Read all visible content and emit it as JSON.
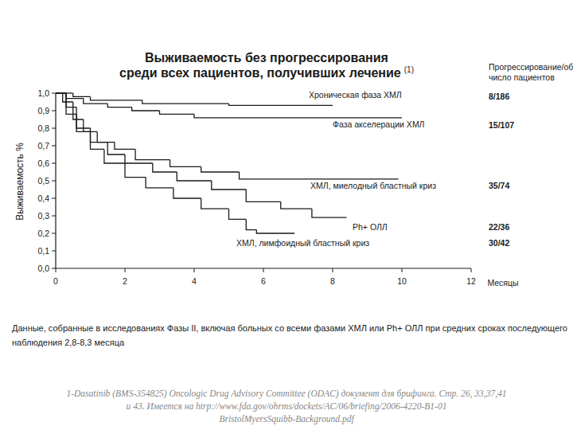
{
  "chart_data": {
    "type": "line",
    "title": [
      "Выживаемость без прогрессирования",
      "среди всех пациентов, получивших лечение"
    ],
    "title_note": "(1)",
    "x_label": "Месяцы",
    "y_label": "Выживаемость %",
    "column_header": [
      "Прогрессирование/общее",
      "число пациентов"
    ],
    "line_style": "step",
    "color": "#1a1a1a",
    "grid": false,
    "xlim": [
      0,
      12
    ],
    "ylim": [
      0,
      1
    ],
    "xticks": [
      0,
      2,
      4,
      6,
      8,
      10,
      12
    ],
    "yticks": [
      {
        "value": 1.0,
        "label": "1,0"
      },
      {
        "value": 0.9,
        "label": "0,9"
      },
      {
        "value": 0.8,
        "label": "0,8"
      },
      {
        "value": 0.7,
        "label": "0,7"
      },
      {
        "value": 0.6,
        "label": "0,6"
      },
      {
        "value": 0.5,
        "label": "0,5"
      },
      {
        "value": 0.4,
        "label": "0,4"
      },
      {
        "value": 0.3,
        "label": "0,3"
      },
      {
        "value": 0.2,
        "label": "0,2"
      },
      {
        "value": 0.1,
        "label": "0,1"
      },
      {
        "value": 0.0,
        "label": "0,0"
      }
    ],
    "series": [
      {
        "name": "Хроническая фаза ХМЛ",
        "progression": "8/186",
        "x": [
          0,
          0.5,
          1.0,
          2.5,
          5.0,
          8.0
        ],
        "values": [
          1.0,
          0.98,
          0.96,
          0.94,
          0.93,
          0.93
        ]
      },
      {
        "name": "Фаза акселерации ХМЛ",
        "progression": "15/107",
        "x": [
          0,
          0.3,
          0.8,
          1.5,
          2.2,
          3.0,
          4.0,
          10.0
        ],
        "values": [
          1.0,
          0.97,
          0.94,
          0.92,
          0.9,
          0.88,
          0.86,
          0.86
        ]
      },
      {
        "name": "ХМЛ, миелодный бластный криз",
        "progression": "35/74",
        "x": [
          0,
          0.2,
          0.5,
          0.8,
          1.2,
          1.7,
          2.3,
          3.3,
          4.2,
          5.3,
          9.9
        ],
        "values": [
          1.0,
          0.95,
          0.85,
          0.78,
          0.72,
          0.68,
          0.62,
          0.58,
          0.55,
          0.51,
          0.51
        ]
      },
      {
        "name": "Ph+ ОЛЛ",
        "progression": "22/36",
        "x": [
          0,
          0.3,
          0.6,
          1.0,
          1.5,
          2.0,
          2.8,
          3.5,
          4.5,
          5.5,
          6.5,
          7.4,
          8.4
        ],
        "values": [
          1.0,
          0.92,
          0.8,
          0.72,
          0.65,
          0.6,
          0.55,
          0.5,
          0.45,
          0.38,
          0.34,
          0.29,
          0.29
        ]
      },
      {
        "name": "ХМЛ, лимфоидный бластный криз",
        "progression": "30/42",
        "x": [
          0,
          0.3,
          0.6,
          1.0,
          1.4,
          2.0,
          2.6,
          3.4,
          4.2,
          5.0,
          5.5,
          5.8,
          6.9
        ],
        "values": [
          1.0,
          0.88,
          0.78,
          0.68,
          0.6,
          0.52,
          0.46,
          0.4,
          0.34,
          0.28,
          0.22,
          0.2,
          0.2
        ]
      }
    ],
    "footnote": [
      "Данные, собранные в исследованиях Фазы II, включая больных со всеми фазами ХМЛ или Ph+ ОЛЛ при средних сроках последующего",
      "наблюдения 2,8-8,3 месяца"
    ],
    "source": [
      "1-Dasatinib (BMS-354825) Oncologic Drug Advisory Committee (ODAC) документ для брифинга. Стр. 26, 33,37,41",
      "и 43. Имеется на htrp://www.fda.gov/ohrms/dockets/AC/06/briefing/2006-4220-B1-01",
      "BristolMyersSquibb-Background.pdf"
    ]
  }
}
